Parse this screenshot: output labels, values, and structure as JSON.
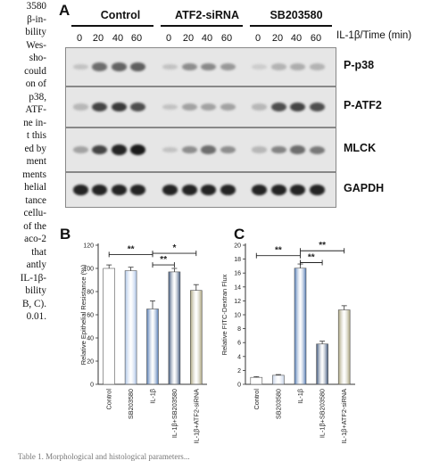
{
  "side_text": [
    "3580",
    "β-in-",
    "bility",
    "Wes-",
    "sho-",
    "could",
    "on  of",
    "p38,",
    "ATF-",
    "ne in-",
    "t  this",
    "ed by",
    "ment",
    "ments",
    "helial",
    "tance",
    "cellu-",
    "of the",
    "aco-2",
    "that",
    "antly",
    "IL-1β-",
    "bility",
    "B, C).",
    "0.01."
  ],
  "panel_a": {
    "letter": "A",
    "groups": [
      "Control",
      "ATF2-siRNA",
      "SB203580"
    ],
    "timepoints": [
      "0",
      "20",
      "40",
      "60",
      "0",
      "20",
      "40",
      "60",
      "0",
      "20",
      "40",
      "60"
    ],
    "time_label": "IL-1β/Time (min)",
    "blots": [
      {
        "label": "P-p38",
        "intensity": [
          0.15,
          0.55,
          0.6,
          0.62,
          0.15,
          0.4,
          0.42,
          0.35,
          0.1,
          0.22,
          0.25,
          0.22
        ]
      },
      {
        "label": "P-ATF2",
        "intensity": [
          0.2,
          0.75,
          0.8,
          0.7,
          0.15,
          0.3,
          0.3,
          0.3,
          0.2,
          0.7,
          0.75,
          0.7
        ]
      },
      {
        "label": "MLCK",
        "intensity": [
          0.3,
          0.75,
          0.9,
          0.95,
          0.15,
          0.4,
          0.55,
          0.4,
          0.2,
          0.45,
          0.55,
          0.5
        ]
      },
      {
        "label": "GAPDH",
        "intensity": [
          0.9,
          0.9,
          0.9,
          0.9,
          0.9,
          0.9,
          0.9,
          0.9,
          0.9,
          0.9,
          0.9,
          0.9
        ]
      }
    ]
  },
  "chart_data": [
    {
      "panel": "B",
      "type": "bar",
      "ylabel": "Relative Epithelial Resistance (%)",
      "ylim": [
        0,
        120
      ],
      "yticks": [
        "0",
        "20",
        "40",
        "60",
        "80",
        "100",
        "120"
      ],
      "categories": [
        "Control",
        "SB203580",
        "IL-1β",
        "IL-1β+SB203580",
        "IL-1β+ATF2-siRNA"
      ],
      "values": [
        100,
        98,
        65,
        97,
        81
      ],
      "errors": [
        3,
        3,
        7,
        3,
        5
      ],
      "colors": [
        "#ffffff",
        "#a9c2e6",
        "#4f78b2",
        "#3b5378",
        "#a7a07a"
      ],
      "significance": [
        {
          "from": 0,
          "to": 2,
          "label": "**",
          "level": 112
        },
        {
          "from": 2,
          "to": 3,
          "label": "**",
          "level": 103
        },
        {
          "from": 2,
          "to": 4,
          "label": "*",
          "level": 113
        }
      ]
    },
    {
      "panel": "C",
      "type": "bar",
      "ylabel": "Relative FITC-Dextran Flux",
      "ylim": [
        0,
        20
      ],
      "yticks": [
        "0",
        "2",
        "4",
        "6",
        "8",
        "10",
        "12",
        "14",
        "16",
        "18",
        "20"
      ],
      "categories": [
        "Control",
        "SB203580",
        "IL-1β",
        "IL-1β+SB203580",
        "IL-1β+ATF2-siRNA"
      ],
      "values": [
        1,
        1.3,
        16.7,
        5.8,
        10.7
      ],
      "errors": [
        0.1,
        0.1,
        0.6,
        0.4,
        0.6
      ],
      "colors": [
        "#ffffff",
        "#c6d3e8",
        "#4f78b2",
        "#3b5378",
        "#a7a07a"
      ],
      "significance": [
        {
          "from": 0,
          "to": 2,
          "label": "**",
          "level": 18.5
        },
        {
          "from": 2,
          "to": 3,
          "label": "**",
          "level": 17.5
        },
        {
          "from": 2,
          "to": 4,
          "label": "**",
          "level": 19.2
        }
      ]
    }
  ],
  "caption": "Table 1. Morphological and histological parameters..."
}
